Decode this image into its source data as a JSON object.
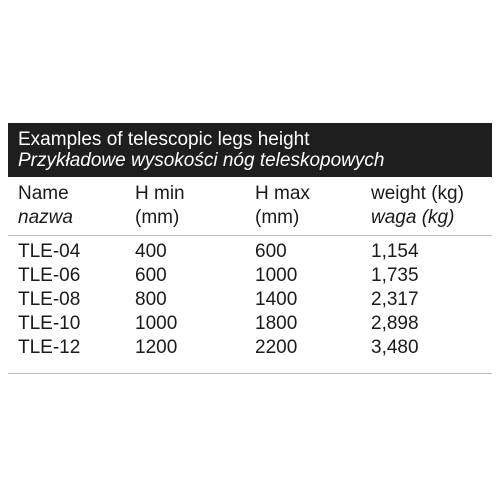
{
  "title": {
    "english": "Examples of telescopic legs height",
    "polish": "Przykładowe wysokości nóg teleskopowych"
  },
  "header": {
    "name": {
      "en": "Name",
      "pl": "nazwa"
    },
    "h_min": {
      "en": "H min",
      "unit": "(mm)"
    },
    "h_max": {
      "en": "H max",
      "unit": "(mm)"
    },
    "weight": {
      "en": "weight (kg)",
      "pl": "waga (kg)"
    }
  },
  "rows": [
    [
      "TLE-04",
      "400",
      "600",
      "1,154"
    ],
    [
      "TLE-06",
      "600",
      "1000",
      "1,735"
    ],
    [
      "TLE-08",
      "800",
      "1400",
      "2,317"
    ],
    [
      "TLE-10",
      "1000",
      "1800",
      "2,898"
    ],
    [
      "TLE-12",
      "1200",
      "2200",
      "3,480"
    ]
  ]
}
